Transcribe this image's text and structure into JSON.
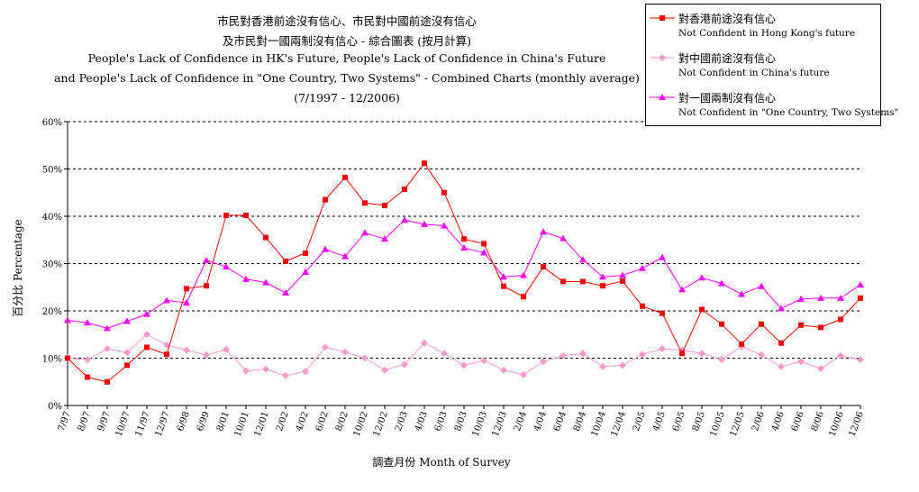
{
  "chart_data": {
    "type": "line",
    "title_lines": [
      "市民對香港前途沒有信心、市民對中國前途沒有信心",
      "及市民對一國兩制沒有信心 - 綜合圖表 (按月計算)",
      "People's Lack of Confidence in HK's Future, People's Lack of Confidence in China's Future",
      "and People's Lack of Confidence in \"One Country, Two Systems\" - Combined Charts (monthly average)",
      "(7/1997 - 12/2006)"
    ],
    "xlabel": "調查月份 Month of Survey",
    "ylabel": "百分比 Percentage",
    "ylim": [
      0,
      60
    ],
    "yticks": [
      0,
      10,
      20,
      30,
      40,
      50,
      60
    ],
    "ytick_labels": [
      "0%",
      "10%",
      "20%",
      "30%",
      "40%",
      "50%",
      "60%"
    ],
    "grid": "horizontal dashed",
    "legend_position": "top-right",
    "categories": [
      "7/97",
      "8/97",
      "9/97",
      "10/97",
      "11/97",
      "12/97",
      "6/98",
      "6/99",
      "8/01",
      "10/01",
      "12/01",
      "2/02",
      "4/02",
      "6/02",
      "8/02",
      "10/02",
      "12/02",
      "2/03",
      "4/03",
      "6/03",
      "8/03",
      "10/03",
      "12/03",
      "2/04",
      "4/04",
      "6/04",
      "8/04",
      "10/04",
      "12/04",
      "2/05",
      "4/05",
      "6/05",
      "8/05",
      "10/05",
      "12/05",
      "2/06",
      "4/06",
      "6/06",
      "8/06",
      "10/06",
      "12/06"
    ],
    "series": [
      {
        "name_zh": "對香港前途沒有信心",
        "name_en": "Not Confident in Hong Kong's future",
        "color": "#ff0000",
        "marker": "square",
        "values": [
          10,
          6,
          5,
          8.5,
          12.3,
          10.8,
          24.7,
          25.3,
          40.2,
          40.2,
          35.5,
          30.5,
          32.2,
          43.5,
          48.2,
          42.8,
          42.3,
          45.7,
          51.2,
          45,
          35.2,
          34.2,
          25.2,
          23,
          29.3,
          26.2,
          26.2,
          25.3,
          26.3,
          21,
          19.5,
          11,
          20.3,
          17.2,
          13,
          17.2,
          13.2,
          17,
          16.5,
          18.2,
          22.7
        ]
      },
      {
        "name_zh": "對中國前途沒有信心",
        "name_en": "Not Confident in China's future",
        "color": "#ff99cc",
        "marker": "diamond",
        "values": [
          10,
          9.7,
          12,
          11.2,
          15,
          12.8,
          11.7,
          10.7,
          11.8,
          7.3,
          7.7,
          6.3,
          7.2,
          12.3,
          11.3,
          10,
          7.5,
          8.7,
          13.2,
          11,
          8.5,
          9.5,
          7.5,
          6.5,
          9.3,
          10.5,
          11,
          8.2,
          8.5,
          10.8,
          12,
          11.7,
          11,
          9.7,
          12.5,
          10.7,
          8.2,
          9.3,
          7.8,
          10.5,
          9.7
        ]
      },
      {
        "name_zh": "對一國兩制沒有信心",
        "name_en": "Not Confident in \"One Country, Two Systems\"",
        "color": "#ff00ff",
        "marker": "triangle",
        "values": [
          18,
          17.5,
          16.3,
          17.8,
          19.3,
          22.2,
          21.7,
          30.7,
          29.3,
          26.7,
          26,
          23.8,
          28.2,
          33,
          31.5,
          36.5,
          35.2,
          39.2,
          38.3,
          38,
          33.3,
          32.3,
          27.2,
          27.5,
          36.7,
          35.3,
          30.8,
          27.2,
          27.5,
          29,
          31.3,
          24.5,
          27,
          25.8,
          23.5,
          25.2,
          20.5,
          22.5,
          22.7,
          22.7,
          25.5
        ]
      }
    ]
  }
}
